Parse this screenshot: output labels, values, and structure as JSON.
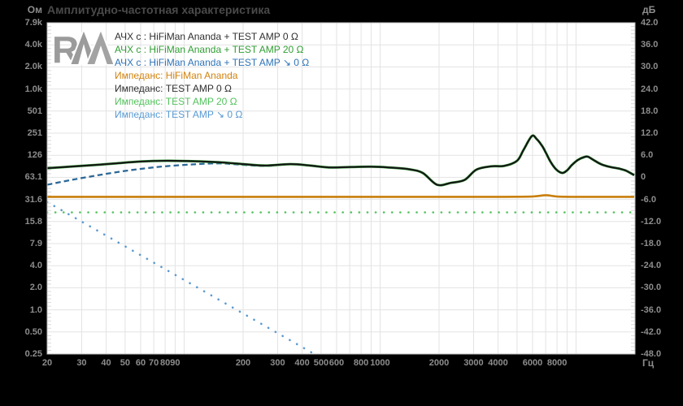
{
  "title": "Амплитудно-частотная характеристика",
  "logo": {
    "text": "RAA",
    "r": "R"
  },
  "colors": {
    "page_background": "#000000",
    "plot_background": "#ffffff",
    "grid": "#e3e3e3",
    "plot_border": "#bdbdbd",
    "minor_tick": "#d9d9d9",
    "title_text": "#4a4a4a",
    "axis_text": "#8d8d8d",
    "logo_gray": "#9b9b9b"
  },
  "chart_data": {
    "type": "line",
    "title": "Амплитудно-частотная характеристика",
    "x_axis": {
      "unit": "Гц",
      "scale": "log",
      "min": 20,
      "max": 20000,
      "ticks": [
        20,
        30,
        40,
        50,
        60,
        70,
        80,
        90,
        200,
        300,
        400,
        500,
        600,
        800,
        1000,
        2000,
        3000,
        4000,
        6000,
        8000
      ]
    },
    "y_axis_right": {
      "unit": "дБ",
      "min": -48,
      "max": 42,
      "step": 6,
      "tick_labels": [
        "42.0",
        "36.0",
        "30.0",
        "24.0",
        "18.0",
        "12.0",
        "6.0",
        "0",
        "-6.0",
        "-12.0",
        "-18.0",
        "-24.0",
        "-30.0",
        "-36.0",
        "-42.0",
        "-48.0"
      ]
    },
    "y_axis_left": {
      "unit": "Ом",
      "scale": "log-impedance aligned to dB grid (value doubles every +6 dB)",
      "tick_labels": [
        "7.9k",
        "4.0k",
        "2.0k",
        "1.0k",
        "501",
        "251",
        "126",
        "63.1",
        "31.6",
        "15.8",
        "7.9",
        "4.0",
        "2.0",
        "1.0",
        "0.50",
        "0.25"
      ]
    },
    "grid": true,
    "legend": {
      "position": "top-left",
      "items": [
        {
          "label": "АЧХ с : HiFiMan Ananda + TEST AMP 0 Ω",
          "color": "#303030"
        },
        {
          "label": "АЧХ с : HiFiMan Ananda + TEST AMP 20 Ω",
          "color": "#2f9e32"
        },
        {
          "label": "АЧХ с : HiFiMan Ananda + TEST AMP ↘ 0 Ω",
          "color": "#2e73b8"
        },
        {
          "label": "Импеданс: HiFiMan Ananda",
          "color": "#d2820e"
        },
        {
          "label": "Импеданс: TEST AMP 0 Ω",
          "color": "#303030"
        },
        {
          "label": "Импеданс: TEST AMP 20 Ω",
          "color": "#52c25c"
        },
        {
          "label": "Импеданс: TEST AMP ↘ 0 Ω",
          "color": "#5899d2"
        }
      ]
    },
    "series": [
      {
        "id": "fr-amp0",
        "name": "АЧХ с : HiFiMan Ananda + TEST AMP 0 Ω",
        "color": "#161616",
        "style": "solid",
        "width": 2.1,
        "points_hz_db": [
          [
            20,
            2.5
          ],
          [
            26,
            2.9
          ],
          [
            34,
            3.3
          ],
          [
            45,
            3.8
          ],
          [
            60,
            4.3
          ],
          [
            80,
            4.5
          ],
          [
            110,
            4.4
          ],
          [
            150,
            4.1
          ],
          [
            200,
            3.6
          ],
          [
            260,
            3.2
          ],
          [
            350,
            3.6
          ],
          [
            440,
            3.2
          ],
          [
            550,
            2.7
          ],
          [
            700,
            2.8
          ],
          [
            900,
            2.9
          ],
          [
            1100,
            2.7
          ],
          [
            1400,
            2.2
          ],
          [
            1650,
            1.2
          ],
          [
            1950,
            -2.0
          ],
          [
            2300,
            -1.5
          ],
          [
            2700,
            -0.7
          ],
          [
            3100,
            2.1
          ],
          [
            3700,
            3.0
          ],
          [
            4300,
            3.1
          ],
          [
            5000,
            4.5
          ],
          [
            5400,
            7.5
          ],
          [
            5950,
            11.2
          ],
          [
            6300,
            10.4
          ],
          [
            6700,
            8.6
          ],
          [
            7000,
            6.8
          ],
          [
            7400,
            4.3
          ],
          [
            7900,
            2.2
          ],
          [
            8500,
            1.2
          ],
          [
            9000,
            1.9
          ],
          [
            9500,
            3.3
          ],
          [
            10200,
            4.7
          ],
          [
            11000,
            5.5
          ],
          [
            11500,
            5.6
          ],
          [
            12300,
            4.7
          ],
          [
            13500,
            3.5
          ],
          [
            15000,
            2.8
          ],
          [
            16500,
            2.4
          ],
          [
            18000,
            1.8
          ],
          [
            19800,
            0.6
          ]
        ]
      },
      {
        "id": "fr-amp20",
        "name": "АЧХ с : HiFiMan Ananda + TEST AMP 20 Ω",
        "color": "#2f9e32",
        "style": "solid",
        "width": 3,
        "same_points_as": "fr-amp0",
        "note": "overlaps the 0 Ω curve exactly (flat planar impedance)"
      },
      {
        "id": "fr-amp-decl",
        "name": "АЧХ с : HiFiMan Ananda + TEST AMP ↘ 0 Ω",
        "color": "#2b6896",
        "style": "dashed",
        "width": 2.3,
        "points_hz_db": [
          [
            20,
            -2.0
          ],
          [
            26,
            -0.8
          ],
          [
            34,
            0.3
          ],
          [
            45,
            1.4
          ],
          [
            60,
            2.3
          ],
          [
            80,
            3.0
          ],
          [
            110,
            3.5
          ],
          [
            150,
            3.8
          ],
          [
            200,
            3.4
          ],
          [
            260,
            3.1
          ]
        ],
        "continue_as": "fr-amp0",
        "continue_from_hz": 350,
        "note": "bass rolled off below ~300 Hz, merges with 0 Ω curve above"
      },
      {
        "id": "imp-ananda",
        "name": "Импеданс: HiFiMan Ananda",
        "color": "#c87f0c",
        "style": "solid",
        "width": 2.6,
        "ohms_approx": 34,
        "points_hz_db": [
          [
            20,
            -5.3
          ],
          [
            1000,
            -5.3
          ],
          [
            4000,
            -5.3
          ],
          [
            6000,
            -5.2
          ],
          [
            7000,
            -4.85
          ],
          [
            8000,
            -5.2
          ],
          [
            10000,
            -5.3
          ],
          [
            19800,
            -5.3
          ]
        ]
      },
      {
        "id": "imp-testamp0",
        "name": "Импеданс: TEST AMP 0 Ω",
        "color": "#161616",
        "style": "solid",
        "width": 2,
        "ohms_approx": 0,
        "points_hz_db": [],
        "note": "0 Ω — below the visible log scale, curve not drawn"
      },
      {
        "id": "imp-testamp20",
        "name": "Импеданс: TEST AMP 20 Ω",
        "color": "#55c45f",
        "style": "dotted",
        "width": 2.6,
        "ohms_approx": 21,
        "points_hz_db": [
          [
            20,
            -9.5
          ],
          [
            19800,
            -9.5
          ]
        ]
      },
      {
        "id": "imp-testamp-decl",
        "name": "Импеданс: TEST AMP ↘ 0 Ω",
        "color": "#5b99cf",
        "style": "dotted",
        "width": 2.6,
        "ohms_approx_at_20hz": 28,
        "points_hz_db": [
          [
            20,
            -6.7
          ],
          [
            480,
            -48.5
          ]
        ],
        "note": "impedance falls ~29 dB/decade, leaves scale near 480 Hz"
      }
    ]
  }
}
